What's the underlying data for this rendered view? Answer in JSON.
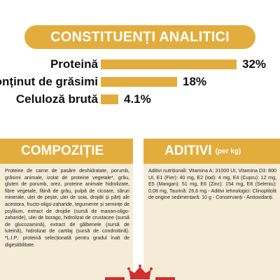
{
  "analytic": {
    "title": "CONSTITUENȚI ANALITICI",
    "rows": [
      {
        "label": "Proteină",
        "value": "32%",
        "fraction": 1.0
      },
      {
        "label": "Conținut de grăsimi",
        "value": "18%",
        "fraction": 0.56
      },
      {
        "label": "Celuloză brută",
        "value": "4.1%",
        "fraction": 0.13
      }
    ]
  },
  "composition": {
    "title": "COMPOZIȚIE",
    "text": "Proteine de carne de pasăre deshidratate, porumb, grăsimi animale, izolat de proteine vegetale*, grâu, gluten de porumb, orez, proteine animale hidrolizate, fibre vegetale, făină de grâu, pulpă de cicoare, săruri minerale, ulei de pește, ulei de soia, drojdii și părți ale acestora, fructo-oligo-zaharide, tegumente și semințe de psyllium, extract de drojdie (sursă de manan-oligo-zaharide), ulei de borago, hidrolizat de crustacee (sursă de glucozamină), extract de gălbenele (sursă de luteină), hidrolizat de cartilaj (sursă de condroitină). *L.I.P.: proteină selecționată pentru gradul înalt de digestibilitate."
  },
  "additives": {
    "title": "ADITIVI",
    "subtitle": "(per kg)",
    "text": "Aditivi nutriționali: Vitamina A: 31000 UI, Vitamina D3: 800 UI, E1 (Fier): 40 mg, E2 (Iod): 4 mg, E4 (Cupru): 12 mg, E5 (Mangan): 51 mg, E6 (Zinc): 154 mg, E8 (Seleniu): 0,08 mg, Taurină: 26,6 mg - Aditivi tehnologici: Clinoptilolit de origine sedimentară: 10 g - Conservanți - Antioxidanți."
  },
  "colors": {
    "accent": "#e3ad3d",
    "panel": "#f5ecd7",
    "brand_red": "#d42d2d"
  },
  "icons": [
    "crown-logo-icon"
  ]
}
